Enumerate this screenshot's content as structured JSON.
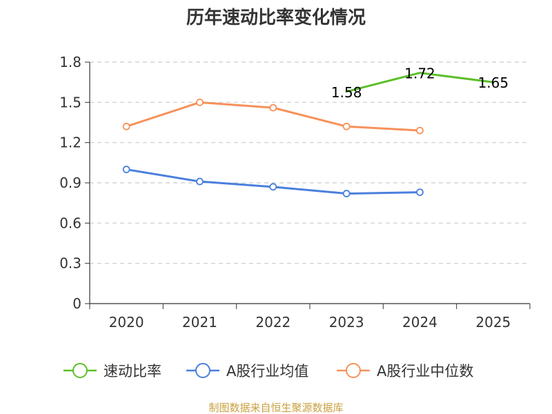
{
  "chart_data": {
    "type": "line",
    "title": "历年速动比率变化情况",
    "categories": [
      "2020",
      "2021",
      "2022",
      "2023",
      "2024",
      "2025"
    ],
    "ylim": [
      0,
      1.8
    ],
    "yticks": [
      0,
      0.3,
      0.6,
      0.9,
      1.2,
      1.5,
      1.8
    ],
    "ytick_labels": [
      "0",
      "0.3",
      "0.6",
      "0.9",
      "1.2",
      "1.5",
      "1.8"
    ],
    "grid": true,
    "legend_position": "bottom",
    "series": [
      {
        "name": "速动比率",
        "color": "#5cbf2a",
        "values": [
          null,
          null,
          null,
          1.58,
          1.72,
          1.65
        ],
        "labels": [
          null,
          null,
          null,
          "1.58",
          "1.72",
          "1.65"
        ],
        "show_markers": false
      },
      {
        "name": "A股行业均值",
        "color": "#4a7fdc",
        "values": [
          1.0,
          0.91,
          0.87,
          0.82,
          0.83,
          null
        ],
        "show_markers": true
      },
      {
        "name": "A股行业中位数",
        "color": "#f7915a",
        "values": [
          1.32,
          1.5,
          1.46,
          1.32,
          1.29,
          null
        ],
        "show_markers": true
      }
    ]
  },
  "source": "制图数据来自恒生聚源数据库"
}
